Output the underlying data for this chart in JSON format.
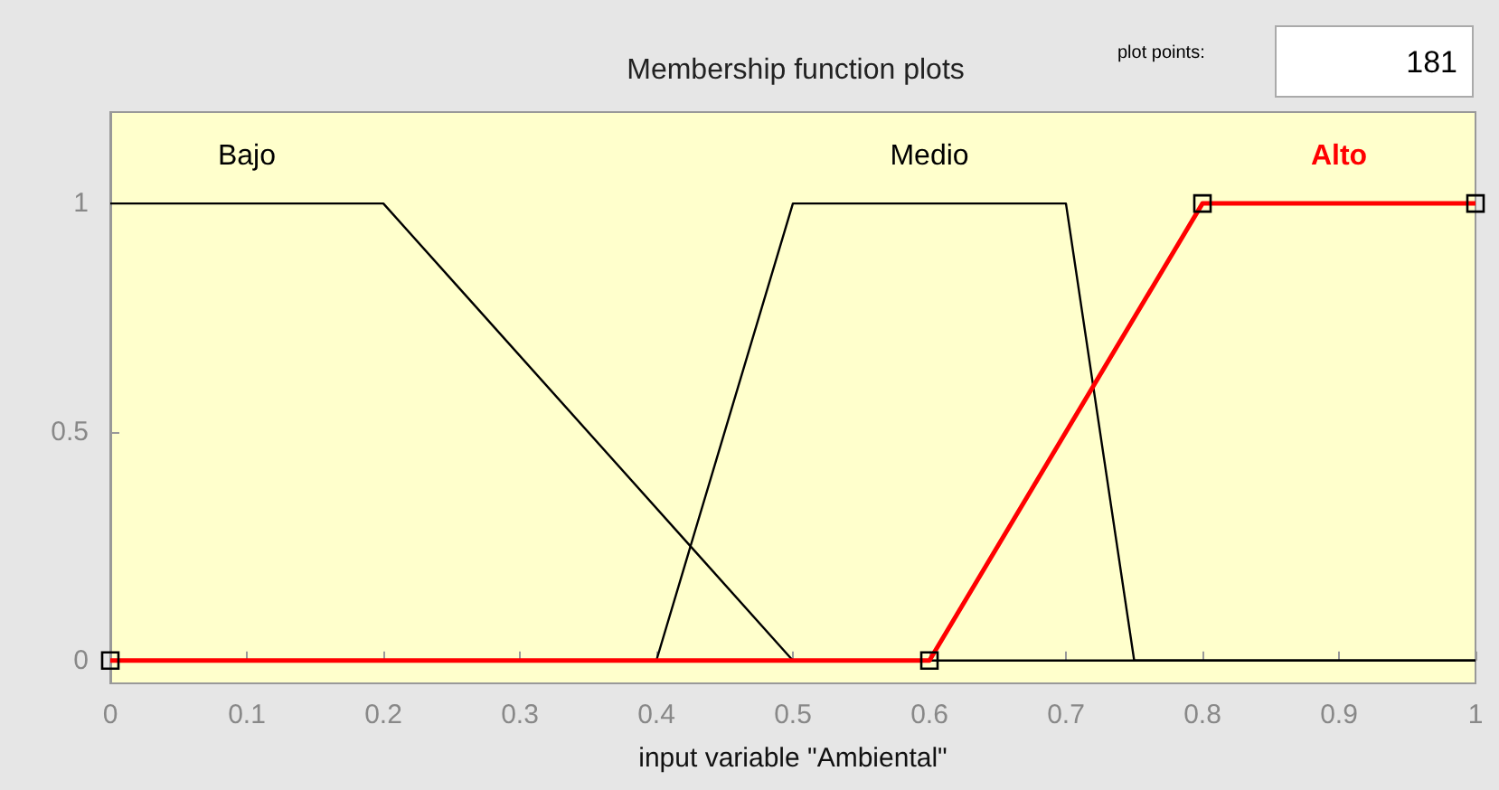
{
  "chart_data": {
    "type": "line",
    "title": "Membership function plots",
    "xlabel": "input variable \"Ambiental\"",
    "annotations": [
      "plot points:",
      "181"
    ],
    "xlim": [
      0,
      1
    ],
    "xticks": [
      0,
      0.1,
      0.2,
      0.3,
      0.4,
      0.5,
      0.6,
      0.7,
      0.8,
      0.9,
      1
    ],
    "ylim": [
      -0.05,
      1.2
    ],
    "yticks": [
      0,
      0.5,
      1
    ],
    "grid": false,
    "legend": false,
    "series": [
      {
        "name": "Bajo",
        "color": "#000000",
        "x": [
          0,
          0.2,
          0.5,
          1
        ],
        "values": [
          1,
          1,
          0,
          0
        ],
        "marker": "none"
      },
      {
        "name": "Medio",
        "color": "#000000",
        "x": [
          0,
          0.4,
          0.5,
          0.7,
          0.75,
          1
        ],
        "values": [
          0,
          0,
          1,
          1,
          0,
          0
        ],
        "marker": "none"
      },
      {
        "name": "Alto",
        "color": "#ff0000",
        "x": [
          0,
          0.6,
          0.8,
          1
        ],
        "values": [
          0,
          0,
          1,
          1
        ],
        "marker": "square"
      }
    ]
  }
}
